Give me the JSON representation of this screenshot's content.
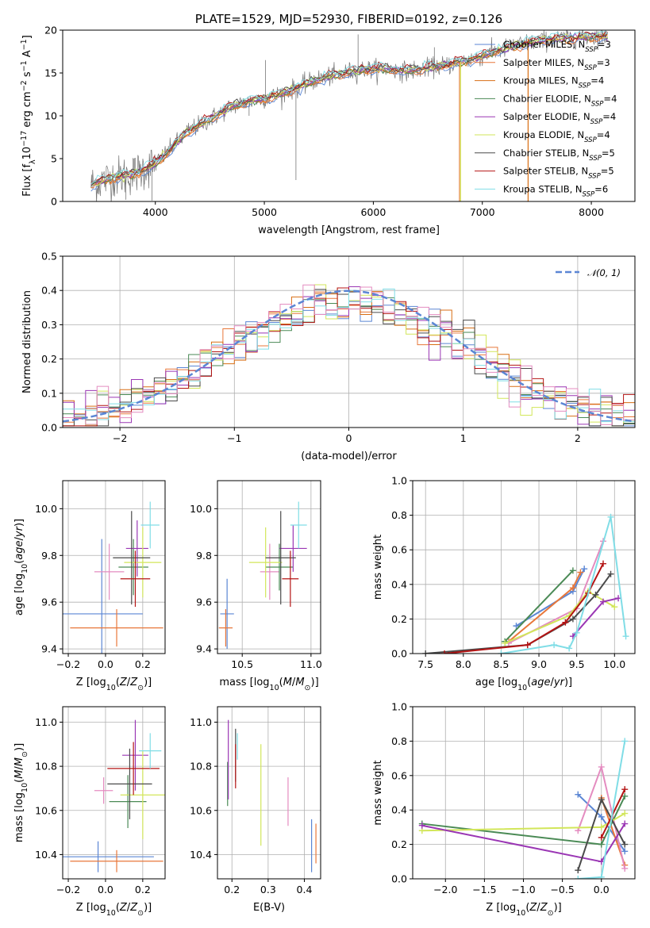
{
  "colors": {
    "Chabrier MILES": "#5b86d4",
    "Salpeter MILES": "#e8773a",
    "Kroupa MILES": "#d86e14",
    "Chabrier ELODIE": "#4a8a55",
    "Salpeter ELODIE": "#9a36b4",
    "Kroupa ELODIE": "#d2e65a",
    "Chabrier STELIB": "#4a4a4a",
    "Salpeter STELIB": "#b41414",
    "Kroupa STELIB": "#80dde6",
    "pink": "#e48cc0",
    "data": "#777777",
    "normal": "#5b86d4"
  },
  "chart_data": [
    {
      "id": "spectrum",
      "type": "line",
      "title": "PLATE=1529, MJD=52930, FIBERID=0192, z=0.126",
      "xlabel": "wavelength [Angstrom, rest frame]",
      "ylabel": "Flux [f",
      "ylabel_parts": [
        "Flux [f",
        "λ",
        "10",
        "−17",
        " erg cm",
        "−2",
        " s",
        "−1",
        " A",
        "−1",
        "]"
      ],
      "xlim": [
        3150,
        8400
      ],
      "ylim": [
        0,
        20
      ],
      "xticks": [
        4000,
        5000,
        6000,
        7000,
        8000
      ],
      "yticks": [
        0,
        5,
        10,
        15,
        20
      ],
      "legend_position": "upper right",
      "legend": [
        {
          "name": "Chabrier MILES",
          "nssp": "3",
          "color": "#5b86d4"
        },
        {
          "name": "Salpeter MILES",
          "nssp": "3",
          "color": "#e8773a"
        },
        {
          "name": "Kroupa MILES",
          "nssp": "4",
          "color": "#d86e14"
        },
        {
          "name": "Chabrier ELODIE",
          "nssp": "4",
          "color": "#4a8a55"
        },
        {
          "name": "Salpeter ELODIE",
          "nssp": "4",
          "color": "#9a36b4"
        },
        {
          "name": "Kroupa ELODIE",
          "nssp": "4",
          "color": "#d2e65a"
        },
        {
          "name": "Chabrier STELIB",
          "nssp": "5",
          "color": "#4a4a4a"
        },
        {
          "name": "Salpeter STELIB",
          "nssp": "5",
          "color": "#b41414"
        },
        {
          "name": "Kroupa STELIB",
          "nssp": "6",
          "color": "#80dde6"
        }
      ],
      "continuum": [
        [
          3400,
          1.9
        ],
        [
          3600,
          2.8
        ],
        [
          3800,
          3.2
        ],
        [
          4000,
          4.4
        ],
        [
          4100,
          5.6
        ],
        [
          4300,
          8.2
        ],
        [
          4500,
          9.6
        ],
        [
          4700,
          11.1
        ],
        [
          4900,
          11.8
        ],
        [
          5100,
          12.3
        ],
        [
          5300,
          13.3
        ],
        [
          5500,
          14.3
        ],
        [
          5700,
          14.9
        ],
        [
          5900,
          15.4
        ],
        [
          6100,
          15.5
        ],
        [
          6300,
          15.2
        ],
        [
          6500,
          15.6
        ],
        [
          6700,
          16.0
        ],
        [
          6900,
          16.6
        ],
        [
          7100,
          17.4
        ],
        [
          7300,
          18.2
        ],
        [
          7500,
          18.7
        ],
        [
          7700,
          19.0
        ],
        [
          7900,
          19.2
        ],
        [
          8100,
          19.3
        ]
      ]
    },
    {
      "id": "residuals",
      "type": "line",
      "xlabel": "(data-model)/error",
      "ylabel": "Normed distribution",
      "xlim": [
        -2.5,
        2.5
      ],
      "ylim": [
        0,
        0.5
      ],
      "xticks": [
        -2,
        -1,
        0,
        1,
        2
      ],
      "yticks": [
        0.0,
        0.1,
        0.2,
        0.3,
        0.4,
        0.5
      ],
      "legend_position": "upper right",
      "legend": [
        {
          "name": "𝒩(0, 1)",
          "style": "dashed",
          "color": "#5b86d4"
        }
      ],
      "normal": {
        "mu": 0,
        "sigma": 1
      },
      "bin_width": 0.1
    },
    {
      "id": "age_Z",
      "type": "scatter",
      "xlabel": "Z [log10(Z/Z⊙)]",
      "ylabel": "age  [log10(age/yr)]",
      "xlim": [
        -0.23,
        0.32
      ],
      "ylim": [
        9.38,
        10.12
      ],
      "xticks": [
        -0.2,
        0.0,
        0.2
      ],
      "yticks": [
        9.4,
        9.6,
        9.8,
        10.0
      ],
      "errorbars": [
        {
          "series": "Chabrier MILES",
          "x": -0.02,
          "y": 9.55,
          "xerr": 0.22,
          "yerr": 0.32
        },
        {
          "series": "Salpeter MILES",
          "x": 0.06,
          "y": 9.49,
          "xerr": 0.25,
          "yerr": 0.08
        },
        {
          "series": "pink",
          "x": 0.02,
          "y": 9.73,
          "xerr": 0.08,
          "yerr": 0.12
        },
        {
          "series": "Chabrier ELODIE",
          "x": 0.15,
          "y": 9.75,
          "xerr": 0.08,
          "yerr": 0.12
        },
        {
          "series": "Salpeter ELODIE",
          "x": 0.17,
          "y": 9.83,
          "xerr": 0.06,
          "yerr": 0.12
        },
        {
          "series": "Kroupa ELODIE",
          "x": 0.2,
          "y": 9.77,
          "xerr": 0.1,
          "yerr": 0.15
        },
        {
          "series": "Chabrier STELIB",
          "x": 0.14,
          "y": 9.79,
          "xerr": 0.1,
          "yerr": 0.2
        },
        {
          "series": "Salpeter STELIB",
          "x": 0.16,
          "y": 9.7,
          "xerr": 0.08,
          "yerr": 0.12
        },
        {
          "series": "Kroupa STELIB",
          "x": 0.24,
          "y": 9.93,
          "xerr": 0.05,
          "yerr": 0.1
        }
      ]
    },
    {
      "id": "age_mass",
      "type": "scatter",
      "xlabel": "mass [log10(M/M⊙)]",
      "ylabel": "",
      "xlim": [
        10.32,
        11.07
      ],
      "ylim": [
        9.38,
        10.12
      ],
      "xticks": [
        10.5,
        11.0
      ],
      "yticks": [
        9.4,
        9.6,
        9.8,
        10.0
      ],
      "errorbars": [
        {
          "series": "Chabrier MILES",
          "x": 10.39,
          "y": 9.55,
          "xerr": 0.05,
          "yerr": 0.15
        },
        {
          "series": "Salpeter MILES",
          "x": 10.38,
          "y": 9.49,
          "xerr": 0.05,
          "yerr": 0.08
        },
        {
          "series": "pink",
          "x": 10.7,
          "y": 9.73,
          "xerr": 0.07,
          "yerr": 0.12
        },
        {
          "series": "Chabrier ELODIE",
          "x": 10.77,
          "y": 9.75,
          "xerr": 0.1,
          "yerr": 0.1
        },
        {
          "series": "Salpeter ELODIE",
          "x": 10.87,
          "y": 9.83,
          "xerr": 0.1,
          "yerr": 0.1
        },
        {
          "series": "Kroupa ELODIE",
          "x": 10.67,
          "y": 9.77,
          "xerr": 0.12,
          "yerr": 0.15
        },
        {
          "series": "Chabrier STELIB",
          "x": 10.78,
          "y": 9.79,
          "xerr": 0.11,
          "yerr": 0.2
        },
        {
          "series": "Salpeter STELIB",
          "x": 10.85,
          "y": 9.7,
          "xerr": 0.06,
          "yerr": 0.12
        },
        {
          "series": "Kroupa STELIB",
          "x": 10.91,
          "y": 9.93,
          "xerr": 0.06,
          "yerr": 0.1
        }
      ]
    },
    {
      "id": "weight_age",
      "type": "line",
      "xlabel": "age  [log10(age/yr)]",
      "ylabel": "mass weight",
      "xlim": [
        7.33,
        10.27
      ],
      "ylim": [
        0,
        1
      ],
      "xticks": [
        7.5,
        8.0,
        8.5,
        9.0,
        9.5,
        10.0
      ],
      "yticks": [
        0.0,
        0.2,
        0.4,
        0.6,
        0.8,
        1.0
      ],
      "series": [
        {
          "name": "Chabrier MILES",
          "x": [
            8.7,
            9.45,
            9.6
          ],
          "y": [
            0.16,
            0.36,
            0.49
          ]
        },
        {
          "name": "Salpeter MILES",
          "x": [
            8.6,
            9.45,
            9.55
          ],
          "y": [
            0.07,
            0.38,
            0.47
          ]
        },
        {
          "name": "pink",
          "x": [
            8.6,
            9.5,
            9.85
          ],
          "y": [
            0.06,
            0.26,
            0.65
          ]
        },
        {
          "name": "Chabrier ELODIE",
          "x": [
            8.55,
            9.45
          ],
          "y": [
            0.07,
            0.48
          ]
        },
        {
          "name": "Kroupa ELODIE",
          "x": [
            8.55,
            9.4,
            9.65,
            10.0
          ],
          "y": [
            0.06,
            0.22,
            0.36,
            0.27
          ]
        },
        {
          "name": "Salpeter ELODIE",
          "x": [
            9.45,
            9.85,
            10.05
          ],
          "y": [
            0.1,
            0.3,
            0.32
          ]
        },
        {
          "name": "Chabrier STELIB",
          "x": [
            7.5,
            8.85,
            9.45,
            9.75,
            9.95
          ],
          "y": [
            0.0,
            0.05,
            0.2,
            0.34,
            0.46
          ]
        },
        {
          "name": "Salpeter STELIB",
          "x": [
            7.75,
            8.85,
            9.35,
            9.65,
            9.85
          ],
          "y": [
            0.0,
            0.05,
            0.18,
            0.35,
            0.52
          ]
        },
        {
          "name": "Kroupa STELIB",
          "x": [
            8.5,
            9.2,
            9.4,
            9.5,
            9.95,
            10.15
          ],
          "y": [
            0.0,
            0.05,
            0.03,
            0.12,
            0.79,
            0.1
          ]
        }
      ]
    },
    {
      "id": "mass_Z",
      "type": "scatter",
      "xlabel": "Z [log10(Z/Z⊙)]",
      "ylabel": "mass [log10(M/M⊙)]",
      "xlim": [
        -0.23,
        0.32
      ],
      "ylim": [
        10.29,
        11.07
      ],
      "xticks": [
        -0.2,
        0.0,
        0.2
      ],
      "yticks": [
        10.4,
        10.6,
        10.8,
        11.0
      ],
      "errorbars": [
        {
          "series": "Chabrier MILES",
          "x": -0.04,
          "y": 10.39,
          "xerr": 0.3,
          "yerr": 0.07
        },
        {
          "series": "Salpeter MILES",
          "x": 0.06,
          "y": 10.37,
          "xerr": 0.25,
          "yerr": 0.05
        },
        {
          "series": "pink",
          "x": -0.01,
          "y": 10.69,
          "xerr": 0.05,
          "yerr": 0.06
        },
        {
          "series": "Chabrier ELODIE",
          "x": 0.12,
          "y": 10.64,
          "xerr": 0.1,
          "yerr": 0.12
        },
        {
          "series": "Salpeter ELODIE",
          "x": 0.16,
          "y": 10.85,
          "xerr": 0.07,
          "yerr": 0.16
        },
        {
          "series": "Kroupa ELODIE",
          "x": 0.2,
          "y": 10.67,
          "xerr": 0.12,
          "yerr": 0.2
        },
        {
          "series": "Chabrier STELIB",
          "x": 0.13,
          "y": 10.72,
          "xerr": 0.12,
          "yerr": 0.16
        },
        {
          "series": "Salpeter STELIB",
          "x": 0.15,
          "y": 10.79,
          "xerr": 0.14,
          "yerr": 0.12
        },
        {
          "series": "Kroupa STELIB",
          "x": 0.24,
          "y": 10.87,
          "xerr": 0.06,
          "yerr": 0.08
        }
      ]
    },
    {
      "id": "mass_EBV",
      "type": "scatter",
      "xlabel": "E(B-V)",
      "ylabel": "",
      "xlim": [
        0.16,
        0.445
      ],
      "ylim": [
        10.29,
        11.07
      ],
      "xticks": [
        0.2,
        0.3,
        0.4
      ],
      "yticks": [
        10.4,
        10.6,
        10.8,
        11.0
      ],
      "errorbars": [
        {
          "series": "Chabrier MILES",
          "x": 0.42,
          "y": 10.44,
          "xerr": 0,
          "yerr": 0.12
        },
        {
          "series": "Salpeter MILES",
          "x": 0.432,
          "y": 10.45,
          "xerr": 0,
          "yerr": 0.09
        },
        {
          "series": "pink",
          "x": 0.355,
          "y": 10.64,
          "xerr": 0,
          "yerr": 0.11
        },
        {
          "series": "Chabrier ELODIE",
          "x": 0.188,
          "y": 10.72,
          "xerr": 0,
          "yerr": 0.1
        },
        {
          "series": "Salpeter ELODIE",
          "x": 0.19,
          "y": 10.83,
          "xerr": 0,
          "yerr": 0.18
        },
        {
          "series": "Kroupa ELODIE",
          "x": 0.28,
          "y": 10.67,
          "xerr": 0,
          "yerr": 0.23
        },
        {
          "series": "Chabrier STELIB",
          "x": 0.21,
          "y": 10.85,
          "xerr": 0,
          "yerr": 0.12
        },
        {
          "series": "Salpeter STELIB",
          "x": 0.21,
          "y": 10.8,
          "xerr": 0,
          "yerr": 0.1
        },
        {
          "series": "Kroupa STELIB",
          "x": 0.215,
          "y": 10.89,
          "xerr": 0,
          "yerr": 0.06
        }
      ]
    },
    {
      "id": "weight_Z",
      "type": "line",
      "xlabel": "Z [log10(Z/Z⊙)]",
      "ylabel": "mass weight",
      "xlim": [
        -2.42,
        0.43
      ],
      "ylim": [
        0,
        1
      ],
      "xticks": [
        -2.0,
        -1.5,
        -1.0,
        -0.5,
        0.0
      ],
      "yticks": [
        0.0,
        0.2,
        0.4,
        0.6,
        0.8,
        1.0
      ],
      "series": [
        {
          "name": "Chabrier MILES",
          "x": [
            -0.3,
            0.0,
            0.3
          ],
          "y": [
            0.49,
            0.36,
            0.16
          ]
        },
        {
          "name": "Salpeter MILES",
          "x": [
            0.0,
            0.3
          ],
          "y": [
            0.47,
            0.08
          ]
        },
        {
          "name": "pink",
          "x": [
            -0.3,
            0.0,
            0.3
          ],
          "y": [
            0.28,
            0.65,
            0.06
          ]
        },
        {
          "name": "Chabrier ELODIE",
          "x": [
            -2.3,
            0.0,
            0.3
          ],
          "y": [
            0.32,
            0.2,
            0.48
          ]
        },
        {
          "name": "Kroupa ELODIE",
          "x": [
            -2.3,
            0.0,
            0.3
          ],
          "y": [
            0.28,
            0.3,
            0.38
          ]
        },
        {
          "name": "Salpeter ELODIE",
          "x": [
            -2.3,
            0.0,
            0.3
          ],
          "y": [
            0.31,
            0.1,
            0.32
          ]
        },
        {
          "name": "Chabrier STELIB",
          "x": [
            -0.3,
            0.0,
            0.3
          ],
          "y": [
            0.05,
            0.46,
            0.2
          ]
        },
        {
          "name": "Salpeter STELIB",
          "x": [
            0.0,
            0.3
          ],
          "y": [
            0.24,
            0.52
          ]
        },
        {
          "name": "Kroupa STELIB",
          "x": [
            -0.3,
            0.0,
            0.3
          ],
          "y": [
            0.0,
            0.01,
            0.8
          ]
        }
      ]
    }
  ]
}
